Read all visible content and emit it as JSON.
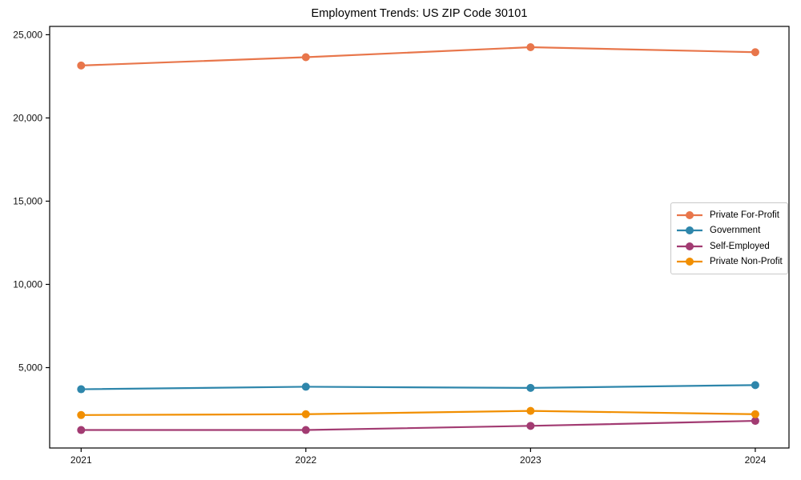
{
  "chart_data": {
    "type": "line",
    "title": "Employment Trends: US ZIP Code 30101",
    "xlabel": "",
    "ylabel": "",
    "grid": false,
    "legend_position": "center right",
    "x": [
      2021,
      2022,
      2023,
      2024
    ],
    "x_labels": [
      "2021",
      "2022",
      "2023",
      "2024"
    ],
    "xlim": [
      2020.86,
      2024.15
    ],
    "ylim": [
      170,
      25500
    ],
    "y_ticks": [
      {
        "value": 5000,
        "label": "5,000"
      },
      {
        "value": 10000,
        "label": "10,000"
      },
      {
        "value": 15000,
        "label": "15,000"
      },
      {
        "value": 20000,
        "label": "20,000"
      },
      {
        "value": 25000,
        "label": "25,000"
      }
    ],
    "series": [
      {
        "name": "Private For-Profit",
        "color": "#E8764B",
        "values": [
          23150,
          23650,
          24250,
          23950
        ]
      },
      {
        "name": "Government",
        "color": "#2E86AB",
        "values": [
          3700,
          3850,
          3780,
          3950
        ]
      },
      {
        "name": "Self-Employed",
        "color": "#A23B72",
        "values": [
          1250,
          1250,
          1500,
          1800
        ]
      },
      {
        "name": "Private Non-Profit",
        "color": "#F18F01",
        "values": [
          2150,
          2200,
          2400,
          2200
        ]
      }
    ]
  }
}
